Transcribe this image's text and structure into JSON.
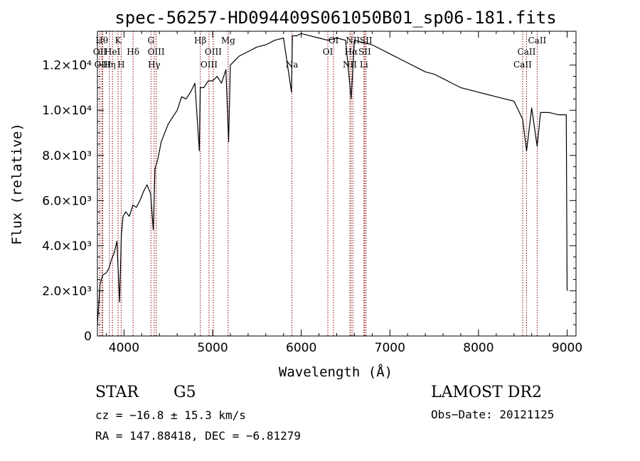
{
  "chart_data": {
    "type": "line",
    "title": "spec-56257-HD094409S061050B01_sp06-181.fits",
    "xlabel": "Wavelength (Å)",
    "ylabel": "Flux (relative)",
    "xlim": [
      3700,
      9100
    ],
    "ylim": [
      0,
      13500
    ],
    "x_ticks": [
      4000,
      5000,
      6000,
      7000,
      8000,
      9000
    ],
    "x_tick_labels": [
      "4000",
      "5000",
      "6000",
      "7000",
      "8000",
      "9000"
    ],
    "y_ticks": [
      0,
      2000,
      4000,
      6000,
      8000,
      10000,
      12000
    ],
    "y_tick_labels": [
      "0",
      "2.0×10³",
      "4.0×10³",
      "6.0×10³",
      "8.0×10³",
      "1.0×10⁴",
      "1.2×10⁴"
    ],
    "grid": false,
    "series": [
      {
        "x": [
          3700,
          3730,
          3760,
          3800,
          3830,
          3860,
          3890,
          3920,
          3950,
          3970,
          3990,
          4020,
          4060,
          4100,
          4140,
          4180,
          4220,
          4260,
          4300,
          4330,
          4350,
          4380,
          4420,
          4460,
          4500,
          4550,
          4600,
          4650,
          4700,
          4750,
          4800,
          4850,
          4860,
          4900,
          4950,
          5000,
          5050,
          5100,
          5150,
          5180,
          5200,
          5250,
          5300,
          5400,
          5500,
          5600,
          5700,
          5800,
          5890,
          5900,
          5950,
          6000,
          6100,
          6200,
          6300,
          6400,
          6500,
          6563,
          6600,
          6700,
          6800,
          6900,
          7000,
          7100,
          7200,
          7300,
          7400,
          7500,
          7600,
          7700,
          7800,
          7900,
          8000,
          8100,
          8200,
          8300,
          8400,
          8498,
          8542,
          8600,
          8662,
          8700,
          8800,
          8900,
          8990,
          9000
        ],
        "y": [
          500,
          2300,
          2700,
          2800,
          3000,
          3400,
          3700,
          4200,
          1500,
          4500,
          5300,
          5500,
          5300,
          5800,
          5700,
          6000,
          6400,
          6700,
          6300,
          4700,
          7400,
          7800,
          8600,
          9000,
          9400,
          9700,
          10000,
          10600,
          10500,
          10800,
          11200,
          8200,
          11000,
          11000,
          11300,
          11300,
          11500,
          11200,
          11800,
          8600,
          12000,
          12200,
          12400,
          12600,
          12800,
          12900,
          13100,
          13200,
          10800,
          13300,
          13300,
          13400,
          13300,
          13200,
          13100,
          13200,
          13100,
          10500,
          13100,
          13000,
          12900,
          12700,
          12500,
          12300,
          12100,
          11900,
          11700,
          11600,
          11400,
          11200,
          11000,
          10900,
          10800,
          10700,
          10600,
          10500,
          10400,
          9600,
          8200,
          10100,
          8400,
          9900,
          9900,
          9800,
          9800,
          2000
        ]
      }
    ],
    "spectral_lines": [
      {
        "wavelength": 3727,
        "labels": [
          "OII"
        ],
        "row": 1
      },
      {
        "wavelength": 3750,
        "labels": [
          "Hθ"
        ],
        "row": 0
      },
      {
        "wavelength": 3760,
        "labels": [
          "OIII"
        ],
        "row": 2
      },
      {
        "wavelength": 3835,
        "labels": [
          "Hη"
        ],
        "row": 2
      },
      {
        "wavelength": 3870,
        "labels": [
          "HeI"
        ],
        "row": 1
      },
      {
        "wavelength": 3933,
        "labels": [
          "K"
        ],
        "row": 0
      },
      {
        "wavelength": 3968,
        "labels": [
          "H"
        ],
        "row": 2
      },
      {
        "wavelength": 4102,
        "labels": [
          "Hδ"
        ],
        "row": 1
      },
      {
        "wavelength": 4304,
        "labels": [
          "G"
        ],
        "row": 0
      },
      {
        "wavelength": 4340,
        "labels": [
          "Hγ"
        ],
        "row": 2
      },
      {
        "wavelength": 4363,
        "labels": [
          "OIII"
        ],
        "row": 1
      },
      {
        "wavelength": 4861,
        "labels": [
          "Hβ"
        ],
        "row": 0
      },
      {
        "wavelength": 4959,
        "labels": [
          "OIII"
        ],
        "row": 2
      },
      {
        "wavelength": 5007,
        "labels": [
          "OIII"
        ],
        "row": 1
      },
      {
        "wavelength": 5175,
        "labels": [
          "Mg"
        ],
        "row": 0
      },
      {
        "wavelength": 5894,
        "labels": [
          "Na"
        ],
        "row": 2
      },
      {
        "wavelength": 6300,
        "labels": [
          "OI"
        ],
        "row": 1
      },
      {
        "wavelength": 6364,
        "labels": [
          "OI"
        ],
        "row": 0
      },
      {
        "wavelength": 6548,
        "labels": [
          "NII"
        ],
        "row": 2
      },
      {
        "wavelength": 6563,
        "labels": [
          "Hα"
        ],
        "row": 1
      },
      {
        "wavelength": 6583,
        "labels": [
          "NII"
        ],
        "row": 0
      },
      {
        "wavelength": 6707,
        "labels": [
          "Li"
        ],
        "row": 2
      },
      {
        "wavelength": 6716,
        "labels": [
          "SII"
        ],
        "row": 1
      },
      {
        "wavelength": 6731,
        "labels": [
          "SII"
        ],
        "row": 0
      },
      {
        "wavelength": 8498,
        "labels": [
          "CaII"
        ],
        "row": 2
      },
      {
        "wavelength": 8542,
        "labels": [
          "CaII"
        ],
        "row": 1
      },
      {
        "wavelength": 8662,
        "labels": [
          "CaII"
        ],
        "row": 0
      }
    ],
    "line_color": "#000000",
    "marker_color": "#8b0000"
  },
  "info": {
    "class": "STAR",
    "subclass": "G5",
    "survey": "LAMOST DR2",
    "cz": "cz = −16.8 ± 15.3 km/s",
    "obs_date": "Obs−Date: 20121125",
    "radec": "RA = 147.88418, DEC =  −6.81279"
  }
}
